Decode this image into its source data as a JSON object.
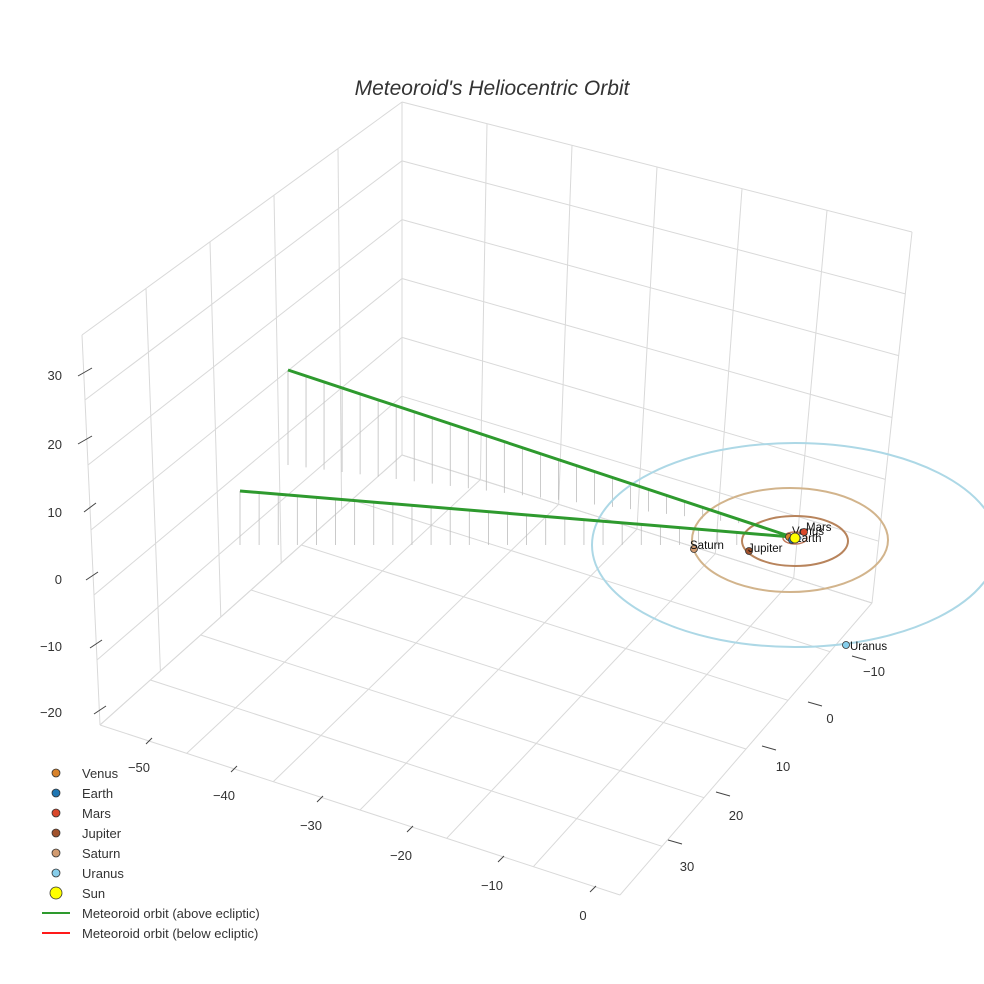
{
  "chart_data": {
    "type": "scatter3d",
    "title": "Meteoroid's Heliocentric Orbit",
    "axes": {
      "x": {
        "ticks": [
          "0",
          "−10",
          "−20",
          "−30",
          "−40",
          "−50"
        ]
      },
      "y": {
        "ticks": [
          "−10",
          "0",
          "10",
          "20",
          "30"
        ]
      },
      "z": {
        "ticks": [
          "30",
          "20",
          "10",
          "0",
          "−10",
          "−20"
        ]
      }
    },
    "colors": {
      "venus": "#d8822a",
      "earth": "#1f77b4",
      "mars": "#d9482b",
      "jupiter": "#a0522d",
      "saturn": "#d29b70",
      "uranus": "#87ceeb",
      "sun": "#ffff00",
      "orbit_above": "#2e9a2e",
      "orbit_below": "#ff1a1a",
      "orbit_mars": "#c0785a",
      "orbit_jupiter": "#b8845c",
      "orbit_saturn": "#d2b48c",
      "orbit_uranus": "#add8e6"
    },
    "bodies": [
      {
        "name": "Venus",
        "label": "Venus"
      },
      {
        "name": "Earth",
        "label": "Earth"
      },
      {
        "name": "Mars",
        "label": "Mars"
      },
      {
        "name": "Jupiter",
        "label": "Jupiter"
      },
      {
        "name": "Saturn",
        "label": "Saturn"
      },
      {
        "name": "Uranus",
        "label": "Uranus"
      }
    ],
    "legend": [
      {
        "label": "Venus",
        "kind": "dot",
        "color": "#d8822a"
      },
      {
        "label": "Earth",
        "kind": "dot",
        "color": "#1f77b4"
      },
      {
        "label": "Mars",
        "kind": "dot",
        "color": "#d9482b"
      },
      {
        "label": "Jupiter",
        "kind": "dot",
        "color": "#a0522d"
      },
      {
        "label": "Saturn",
        "kind": "dot",
        "color": "#d29b70"
      },
      {
        "label": "Uranus",
        "kind": "dot",
        "color": "#87ceeb"
      },
      {
        "label": "Sun",
        "kind": "bigdot",
        "color": "#ffff00"
      },
      {
        "label": "Meteoroid orbit (above ecliptic)",
        "kind": "line",
        "color": "#2e9a2e"
      },
      {
        "label": "Meteoroid orbit (below ecliptic)",
        "kind": "line",
        "color": "#ff1a1a"
      }
    ]
  }
}
